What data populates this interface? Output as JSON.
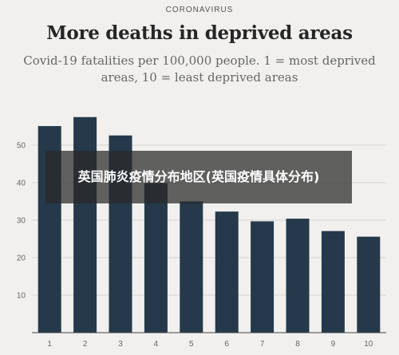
{
  "header": {
    "kicker": "CORONAVIRUS",
    "title": "More deaths in deprived areas",
    "subtitle_line1": "Covid-19 fatalities per 100,000 people. 1 = most deprived",
    "subtitle_line2": "areas, 10 = least deprived areas"
  },
  "overlay": {
    "caption": "英国肺炎疫情分布地区(英国疫情具体分布)"
  },
  "colors": {
    "bar": "#25394a",
    "grid": "#d6d4d0",
    "background": "#f1f0ee"
  },
  "chart_data": {
    "type": "bar",
    "categories": [
      "1",
      "2",
      "3",
      "4",
      "5",
      "6",
      "7",
      "8",
      "9",
      "10"
    ],
    "values": [
      55.1,
      57.5,
      52.6,
      39.9,
      35.0,
      32.3,
      29.7,
      30.4,
      27.1,
      25.6
    ],
    "yticks": [
      10,
      20,
      30,
      40,
      50
    ],
    "ylim": [
      0,
      60
    ],
    "grid": true
  }
}
